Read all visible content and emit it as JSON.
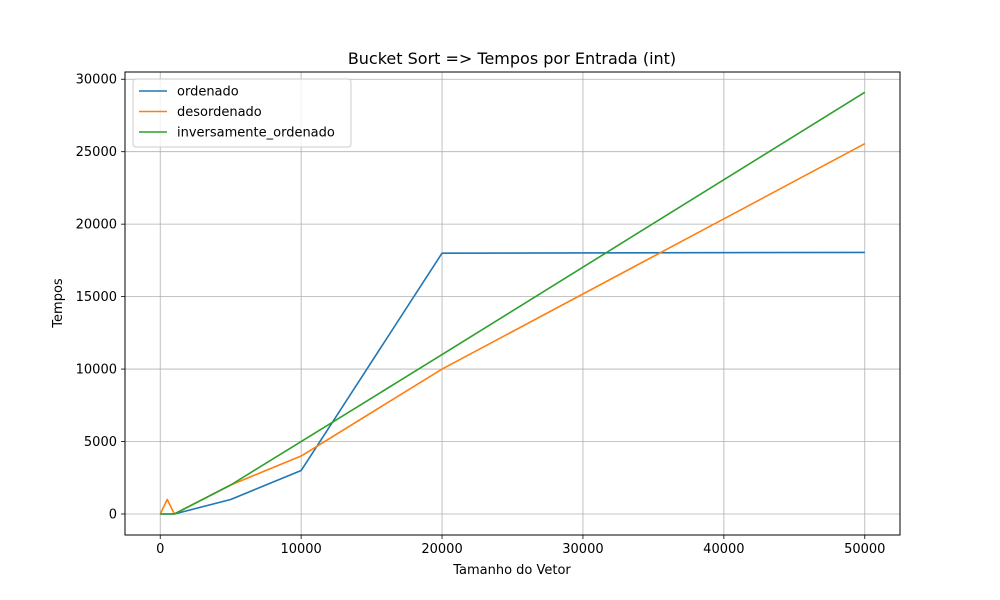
{
  "chart_data": {
    "type": "line",
    "title": "Bucket Sort => Tempos por Entrada (int)",
    "xlabel": "Tamanho do Vetor",
    "ylabel": "Tempos",
    "xlim": [
      -2500,
      52500
    ],
    "ylim": [
      -1450,
      30500
    ],
    "xticks": [
      0,
      10000,
      20000,
      30000,
      40000,
      50000
    ],
    "yticks": [
      0,
      5000,
      10000,
      15000,
      20000,
      25000,
      30000
    ],
    "grid": true,
    "legend_position": "upper-left",
    "series": [
      {
        "name": "ordenado",
        "color": "#1f77b4",
        "x": [
          0,
          500,
          1000,
          5000,
          10000,
          20000,
          50000
        ],
        "y": [
          0,
          0,
          0,
          1000,
          3000,
          18000,
          18050
        ]
      },
      {
        "name": "desordenado",
        "color": "#ff7f0e",
        "x": [
          0,
          500,
          1000,
          5000,
          10000,
          20000,
          50000
        ],
        "y": [
          0,
          1000,
          0,
          2000,
          4000,
          10000,
          25550
        ]
      },
      {
        "name": "inversamente_ordenado",
        "color": "#2ca02c",
        "x": [
          0,
          500,
          1000,
          5000,
          10000,
          20000,
          50000
        ],
        "y": [
          0,
          0,
          0,
          2000,
          5000,
          11000,
          29100
        ]
      }
    ]
  }
}
